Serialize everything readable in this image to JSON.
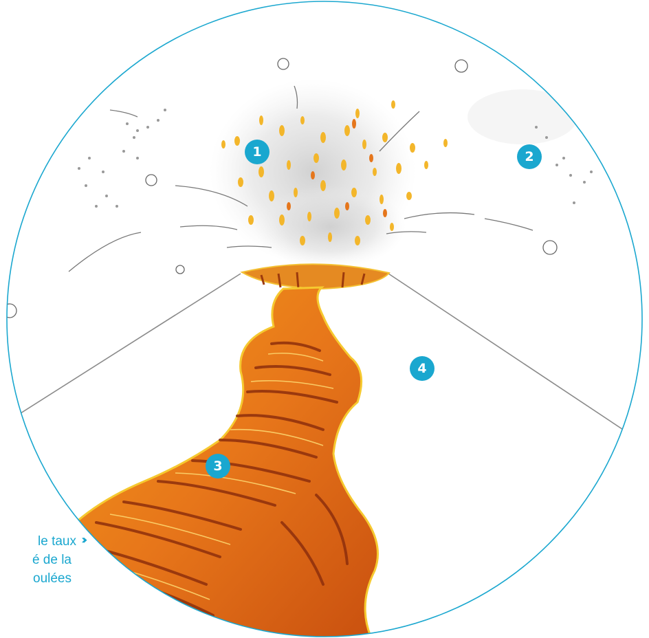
{
  "markers": [
    {
      "label": "1"
    },
    {
      "label": "2"
    },
    {
      "label": "3"
    },
    {
      "label": "4"
    }
  ],
  "caption": {
    "line1": "le taux",
    "line2": "é de la",
    "line3": "oulées",
    "arrow": "›››"
  },
  "colors": {
    "accent": "#1aa7cf",
    "lava_dark": "#b8400e",
    "lava_mid": "#e86f12",
    "lava_light": "#f6b21a",
    "ash": "#d8d8d8"
  },
  "icons": [
    "circular-frame",
    "volcano-cone",
    "lava-flow",
    "ash-plume",
    "projectiles",
    "marker-badge",
    "triple-chevron-icon"
  ]
}
